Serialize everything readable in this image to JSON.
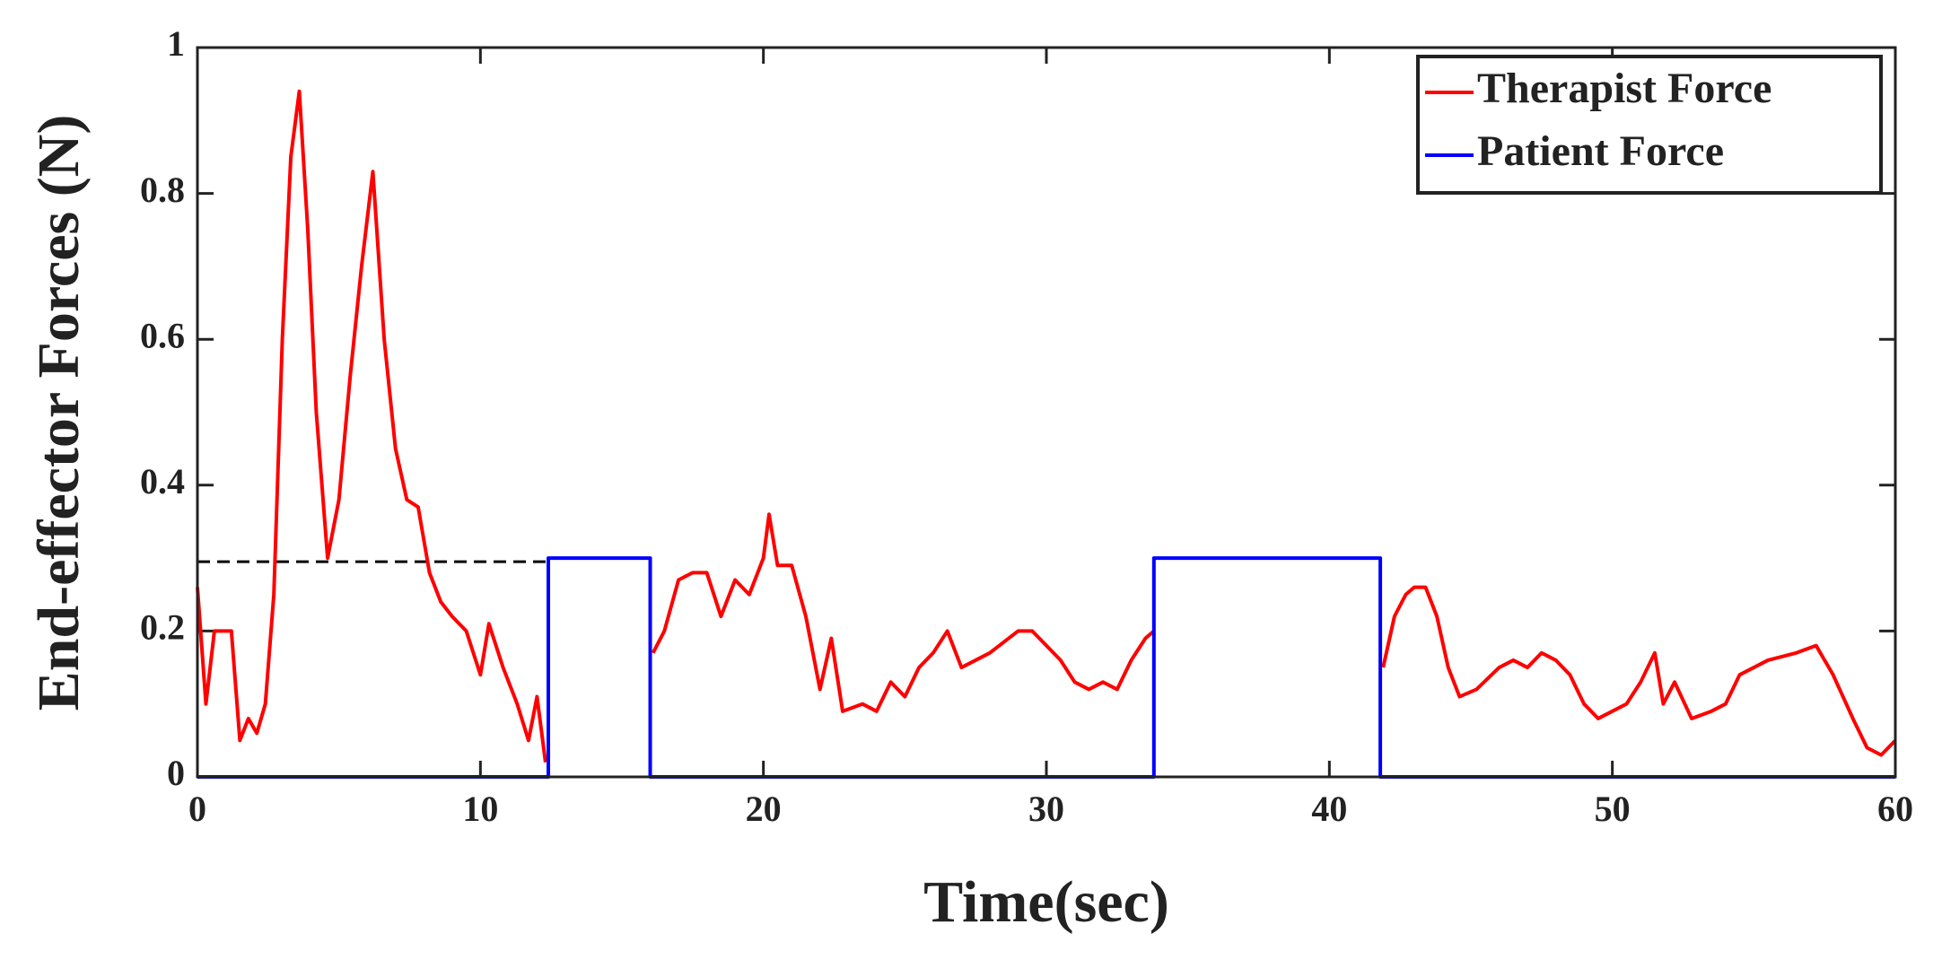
{
  "chart_data": {
    "type": "line",
    "xlabel": "Time(sec)",
    "ylabel": "End-effector Forces (N)",
    "xlim": [
      0,
      60
    ],
    "ylim": [
      0,
      1
    ],
    "xticks": [
      0,
      10,
      20,
      30,
      40,
      50,
      60
    ],
    "yticks": [
      0,
      0.2,
      0.4,
      0.6,
      0.8,
      1
    ],
    "legend": "upper right",
    "series": [
      {
        "name": "Therapist Force",
        "color": "#ff0000",
        "x": [
          0,
          0.3,
          0.6,
          0.9,
          1.2,
          1.5,
          1.8,
          2.1,
          2.4,
          2.7,
          3.0,
          3.3,
          3.6,
          3.9,
          4.2,
          4.6,
          5.0,
          5.4,
          5.8,
          6.2,
          6.6,
          7.0,
          7.4,
          7.8,
          8.2,
          8.6,
          9.0,
          9.5,
          10.0,
          10.3,
          10.8,
          11.3,
          11.7,
          12.0,
          12.3,
          14,
          16.1,
          16.5,
          17,
          17.5,
          18,
          18.5,
          19,
          19.5,
          20,
          20.2,
          20.5,
          21,
          21.5,
          22,
          22.4,
          22.8,
          23.5,
          24,
          24.5,
          25,
          25.5,
          26,
          26.5,
          27,
          28,
          29,
          29.5,
          30,
          30.5,
          31,
          31.5,
          32,
          32.5,
          33,
          33.5,
          33.8,
          38,
          41.9,
          42.3,
          42.7,
          43,
          43.4,
          43.8,
          44.2,
          44.6,
          45.2,
          46,
          46.5,
          47,
          47.5,
          48,
          48.5,
          49,
          49.5,
          50,
          50.5,
          51,
          51.5,
          51.8,
          52.2,
          52.8,
          53.5,
          54,
          54.5,
          55.5,
          56.5,
          57.2,
          57.8,
          58.5,
          59,
          59.5,
          60
        ],
        "values": [
          0.26,
          0.1,
          0.2,
          0.2,
          0.2,
          0.05,
          0.08,
          0.06,
          0.1,
          0.25,
          0.6,
          0.85,
          0.94,
          0.75,
          0.5,
          0.3,
          0.38,
          0.55,
          0.7,
          0.83,
          0.6,
          0.45,
          0.38,
          0.37,
          0.28,
          0.24,
          0.22,
          0.2,
          0.14,
          0.21,
          0.15,
          0.1,
          0.05,
          0.11,
          0.02,
          null,
          0.17,
          0.2,
          0.27,
          0.28,
          0.28,
          0.22,
          0.27,
          0.25,
          0.3,
          0.36,
          0.29,
          0.29,
          0.22,
          0.12,
          0.19,
          0.09,
          0.1,
          0.09,
          0.13,
          0.11,
          0.15,
          0.17,
          0.2,
          0.15,
          0.17,
          0.2,
          0.2,
          0.18,
          0.16,
          0.13,
          0.12,
          0.13,
          0.12,
          0.16,
          0.19,
          0.2,
          null,
          0.15,
          0.22,
          0.25,
          0.26,
          0.26,
          0.22,
          0.15,
          0.11,
          0.12,
          0.15,
          0.16,
          0.15,
          0.17,
          0.16,
          0.14,
          0.1,
          0.08,
          0.09,
          0.1,
          0.13,
          0.17,
          0.1,
          0.13,
          0.08,
          0.09,
          0.1,
          0.14,
          0.16,
          0.17,
          0.18,
          0.14,
          0.08,
          0.04,
          0.03,
          0.05
        ]
      },
      {
        "name": "Patient Force",
        "color": "#0000ff",
        "x": [
          0,
          12.4,
          12.4,
          16,
          16,
          33.8,
          33.8,
          41.8,
          41.8,
          60
        ],
        "values": [
          0,
          0,
          0.3,
          0.3,
          0,
          0,
          0.3,
          0.3,
          0,
          0
        ]
      }
    ],
    "reference_line": {
      "y": 0.295,
      "x": [
        0,
        12.4
      ],
      "color": "#000000",
      "dashed": true
    }
  }
}
